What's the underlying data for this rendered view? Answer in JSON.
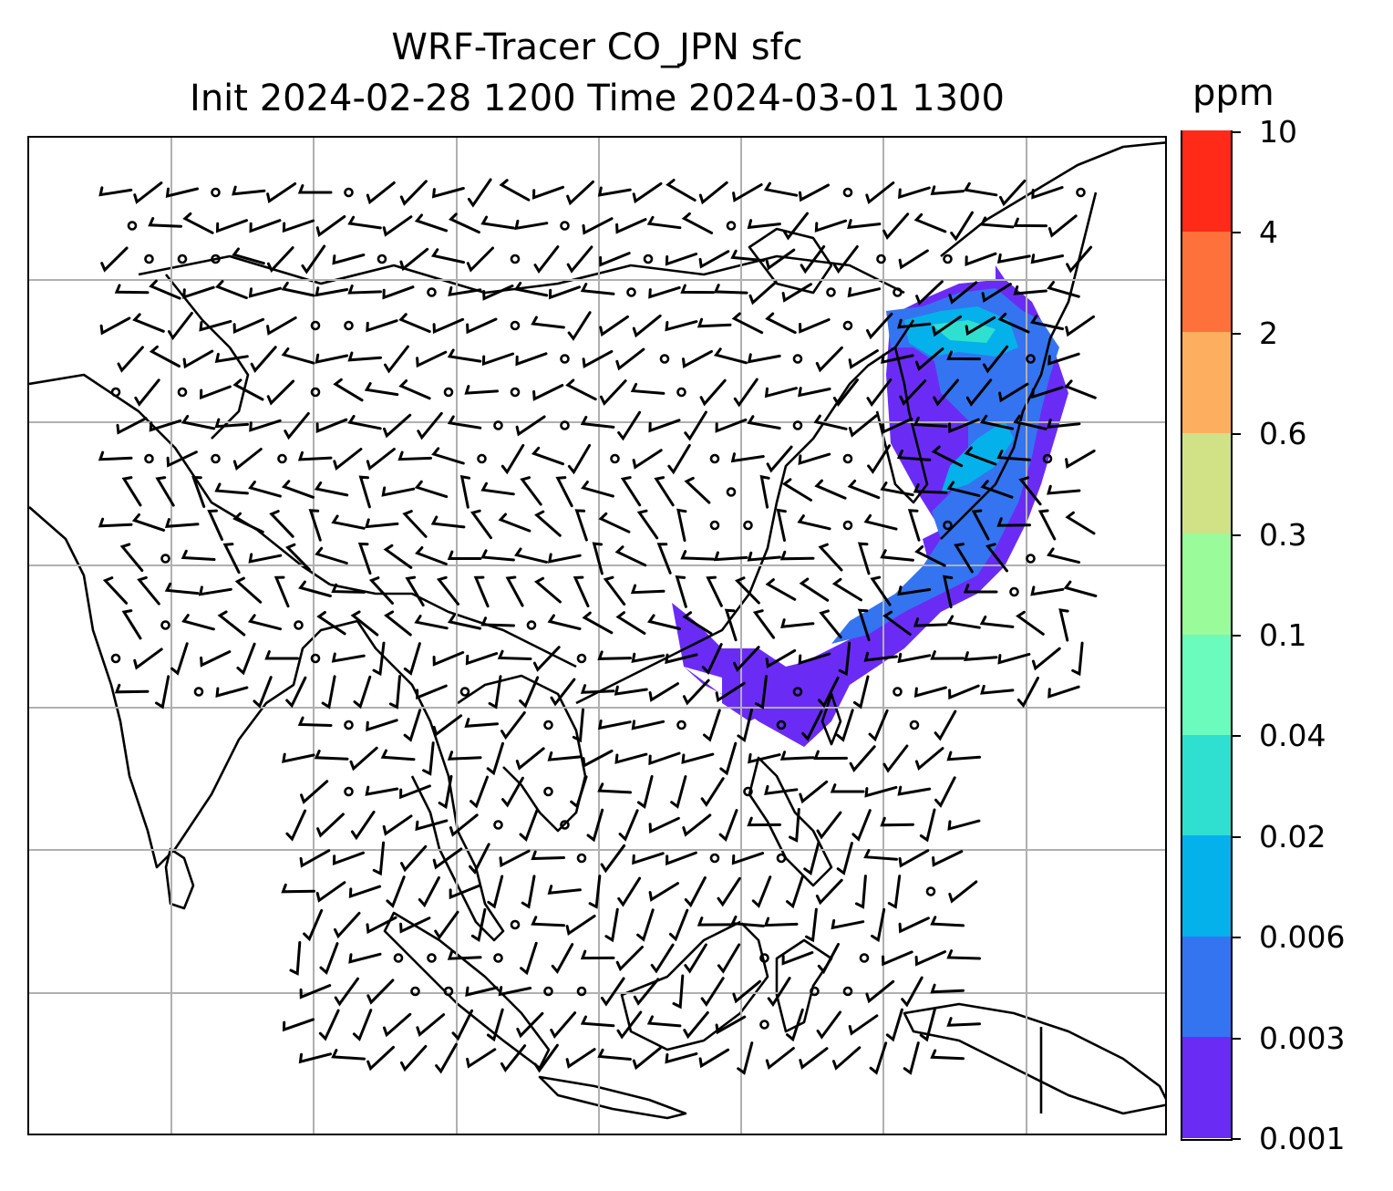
{
  "title": {
    "line1": "WRF-Tracer CO_JPN sfc",
    "line2": "Init 2024-02-28 1200 Time 2024-03-01 1300"
  },
  "colorbar": {
    "unit": "ppm",
    "levels": [
      "0.001",
      "0.003",
      "0.006",
      "0.02",
      "0.04",
      "0.1",
      "0.3",
      "0.6",
      "2",
      "4",
      "10"
    ],
    "colors": [
      "#6a2cf5",
      "#3474f0",
      "#05b1ea",
      "#2fe0d0",
      "#6afbbd",
      "#9afb9b",
      "#d0e186",
      "#fdaf5f",
      "#ff713a",
      "#ff2a18"
    ]
  },
  "map": {
    "gridlines": true,
    "features": [
      "coastlines",
      "country borders",
      "wind barbs",
      "tracer concentration shading"
    ]
  }
}
